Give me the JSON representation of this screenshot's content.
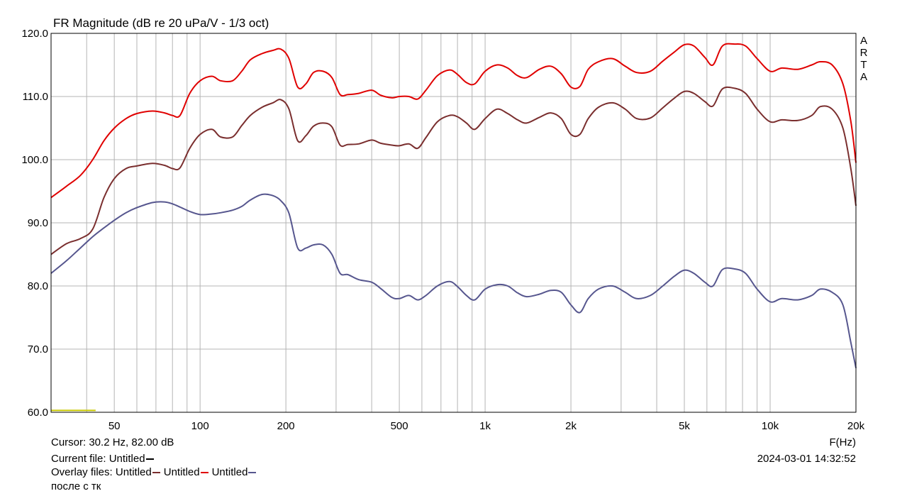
{
  "chart_data": {
    "type": "line",
    "title": "FR Magnitude (dB re 20 uPa/V - 1/3 oct)",
    "xlabel": "F(Hz)",
    "ylabel": "",
    "x_scale": "log",
    "xlim": [
      30,
      20000
    ],
    "ylim": [
      60,
      120
    ],
    "grid": true,
    "watermark": "ARTA",
    "x_tick_labels": [
      {
        "value": 50,
        "label": "50"
      },
      {
        "value": 100,
        "label": "100"
      },
      {
        "value": 200,
        "label": "200"
      },
      {
        "value": 500,
        "label": "500"
      },
      {
        "value": 1000,
        "label": "1k"
      },
      {
        "value": 2000,
        "label": "2k"
      },
      {
        "value": 5000,
        "label": "5k"
      },
      {
        "value": 10000,
        "label": "10k"
      },
      {
        "value": 20000,
        "label": "20k"
      }
    ],
    "y_ticks": [
      {
        "value": 60,
        "label": "60.0"
      },
      {
        "value": 70,
        "label": "70.0"
      },
      {
        "value": 80,
        "label": "80.0"
      },
      {
        "value": 90,
        "label": "90.0"
      },
      {
        "value": 100,
        "label": "100.0"
      },
      {
        "value": 110,
        "label": "110.0"
      },
      {
        "value": 120,
        "label": "120.0"
      }
    ],
    "series": [
      {
        "color": "#e00000",
        "x": [
          30,
          34,
          38,
          42,
          46,
          50,
          55,
          60,
          68,
          75,
          80,
          85,
          92,
          100,
          110,
          118,
          130,
          140,
          150,
          165,
          180,
          192,
          205,
          220,
          235,
          250,
          270,
          290,
          310,
          330,
          360,
          400,
          430,
          470,
          500,
          540,
          580,
          620,
          680,
          750,
          800,
          860,
          920,
          1000,
          1100,
          1200,
          1300,
          1400,
          1550,
          1700,
          1850,
          2000,
          2150,
          2300,
          2500,
          2800,
          3100,
          3400,
          3800,
          4200,
          4600,
          5000,
          5400,
          5900,
          6300,
          6800,
          7500,
          8200,
          9000,
          10000,
          11000,
          12500,
          14000,
          15000,
          16500,
          18000,
          19200,
          20000
        ],
        "y": [
          94.0,
          95.8,
          97.5,
          100.0,
          103.0,
          105.0,
          106.5,
          107.3,
          107.7,
          107.4,
          107.0,
          107.0,
          110.5,
          112.5,
          113.2,
          112.5,
          112.5,
          114.0,
          115.8,
          116.8,
          117.3,
          117.5,
          116.0,
          111.5,
          112.0,
          113.8,
          114.0,
          113.0,
          110.3,
          110.3,
          110.5,
          111.0,
          110.2,
          109.8,
          110.0,
          110.0,
          109.6,
          111.0,
          113.3,
          114.2,
          113.5,
          112.2,
          112.0,
          114.0,
          115.0,
          114.5,
          113.3,
          113.0,
          114.3,
          114.8,
          113.6,
          111.5,
          111.6,
          114.3,
          115.5,
          116.0,
          114.8,
          113.8,
          114.0,
          115.6,
          117.0,
          118.2,
          118.0,
          116.2,
          115.0,
          118.0,
          118.3,
          118.0,
          116.0,
          114.0,
          114.5,
          114.3,
          115.0,
          115.5,
          115.0,
          112.0,
          106.0,
          99.5
        ]
      },
      {
        "color": "#7a2e2e",
        "x": [
          30,
          34,
          38,
          42,
          46,
          50,
          55,
          60,
          68,
          75,
          80,
          85,
          92,
          100,
          110,
          118,
          130,
          140,
          150,
          165,
          180,
          192,
          205,
          220,
          235,
          250,
          270,
          290,
          310,
          330,
          360,
          400,
          430,
          470,
          500,
          540,
          580,
          620,
          680,
          750,
          800,
          860,
          920,
          1000,
          1100,
          1200,
          1300,
          1400,
          1550,
          1700,
          1850,
          2000,
          2150,
          2300,
          2500,
          2800,
          3100,
          3400,
          3800,
          4200,
          4600,
          5000,
          5400,
          5900,
          6300,
          6800,
          7500,
          8200,
          9000,
          10000,
          11000,
          12500,
          14000,
          15000,
          16500,
          18000,
          19200,
          20000
        ],
        "y": [
          85.0,
          86.7,
          87.5,
          89.0,
          94.0,
          97.0,
          98.6,
          99.0,
          99.4,
          99.1,
          98.6,
          98.7,
          101.8,
          104.0,
          104.8,
          103.6,
          103.6,
          105.4,
          107.0,
          108.3,
          109.0,
          109.5,
          108.0,
          103.0,
          103.8,
          105.3,
          105.8,
          105.2,
          102.3,
          102.4,
          102.5,
          103.1,
          102.6,
          102.3,
          102.2,
          102.5,
          101.8,
          103.5,
          106.0,
          107.0,
          106.8,
          105.8,
          104.8,
          106.5,
          108.0,
          107.3,
          106.3,
          105.8,
          106.7,
          107.4,
          106.5,
          104.0,
          104.0,
          106.5,
          108.3,
          109.0,
          108.0,
          106.5,
          106.6,
          108.2,
          109.7,
          110.8,
          110.5,
          109.2,
          108.5,
          111.2,
          111.3,
          110.5,
          108.0,
          106.0,
          106.3,
          106.2,
          107.0,
          108.4,
          108.0,
          105.0,
          98.5,
          92.7
        ]
      },
      {
        "color": "#56568e",
        "x": [
          30,
          34,
          38,
          42,
          46,
          50,
          55,
          60,
          68,
          75,
          80,
          85,
          92,
          100,
          110,
          118,
          130,
          140,
          150,
          165,
          180,
          192,
          205,
          220,
          235,
          250,
          270,
          290,
          310,
          330,
          360,
          400,
          430,
          470,
          500,
          540,
          580,
          620,
          680,
          750,
          800,
          860,
          920,
          1000,
          1100,
          1200,
          1300,
          1400,
          1550,
          1700,
          1850,
          2000,
          2150,
          2300,
          2500,
          2800,
          3100,
          3400,
          3800,
          4200,
          4600,
          5000,
          5400,
          5900,
          6300,
          6800,
          7500,
          8200,
          9000,
          10000,
          11000,
          12500,
          14000,
          15000,
          16500,
          18000,
          19200,
          20000
        ],
        "y": [
          82.0,
          84.0,
          86.0,
          87.8,
          89.2,
          90.4,
          91.6,
          92.4,
          93.2,
          93.3,
          93.0,
          92.5,
          91.8,
          91.3,
          91.4,
          91.6,
          92.0,
          92.6,
          93.6,
          94.5,
          94.3,
          93.5,
          91.5,
          86.0,
          86.0,
          86.5,
          86.5,
          85.0,
          82.0,
          81.8,
          81.0,
          80.6,
          79.6,
          78.2,
          78.0,
          78.5,
          77.8,
          78.5,
          80.0,
          80.7,
          79.9,
          78.5,
          77.8,
          79.5,
          80.2,
          80.0,
          78.9,
          78.3,
          78.7,
          79.3,
          79.0,
          77.0,
          75.8,
          78.0,
          79.5,
          80.0,
          79.0,
          78.0,
          78.5,
          80.0,
          81.5,
          82.5,
          82.0,
          80.6,
          80.0,
          82.6,
          82.7,
          82.0,
          79.5,
          77.5,
          78.0,
          77.8,
          78.5,
          79.5,
          79.0,
          77.0,
          71.0,
          67.0
        ]
      }
    ]
  },
  "cursor_text": "Cursor: 30.2 Hz, 82.00 dB",
  "current_file_text": "Current file: Untitled",
  "current_file_color": "#000000",
  "overlay_label": "Overlay files:",
  "overlays": [
    {
      "name": "Untitled",
      "color": "#7a2e2e"
    },
    {
      "name": "Untitled",
      "color": "#e00000"
    },
    {
      "name": "Untitled",
      "color": "#56568e"
    }
  ],
  "note": "после с тк",
  "datetime": "2024-03-01  14:32:52",
  "current_file_marker": {
    "color": "#c8c800",
    "x": [
      30,
      43
    ],
    "y": 60.3
  }
}
